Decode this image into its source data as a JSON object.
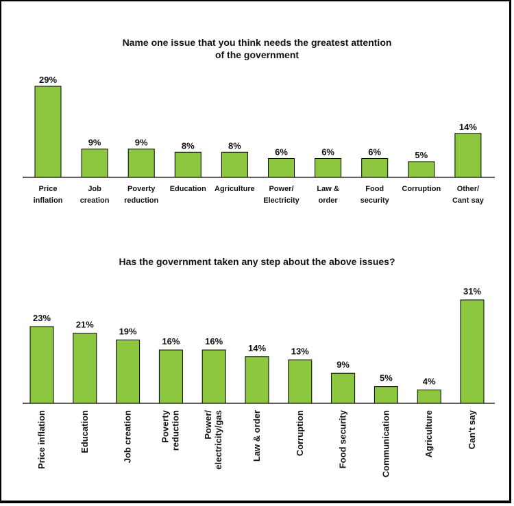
{
  "chart_data": [
    {
      "type": "bar",
      "title": "Name one issue that you think needs the greatest attention of the government",
      "title_lines": [
        "Name one issue that you think needs the greatest attention",
        "of the government"
      ],
      "categories": [
        "Price inflation",
        "Job creation",
        "Poverty reduction",
        "Education",
        "Agriculture",
        "Power/ Electricity",
        "Law & order",
        "Food security",
        "Corruption",
        "Other/ Cant say"
      ],
      "category_lines": [
        [
          "Price",
          "inflation"
        ],
        [
          "Job",
          "creation"
        ],
        [
          "Poverty",
          "reduction"
        ],
        [
          "Education"
        ],
        [
          "Agriculture"
        ],
        [
          "Power/",
          "Electricity"
        ],
        [
          "Law &",
          "order"
        ],
        [
          "Food",
          "security"
        ],
        [
          "Corruption"
        ],
        [
          "Other/",
          "Cant say"
        ]
      ],
      "values": [
        29,
        9,
        9,
        8,
        8,
        6,
        6,
        6,
        5,
        14
      ],
      "value_labels": [
        "29%",
        "9%",
        "9%",
        "8%",
        "8%",
        "6%",
        "6%",
        "6%",
        "5%",
        "14%"
      ],
      "unit": "%",
      "color": "#8dc63f",
      "grid": false,
      "legend": "none"
    },
    {
      "type": "bar",
      "title": "Has the government taken any step about the above issues?",
      "title_lines": [
        "Has the government taken any step about the above issues?"
      ],
      "categories": [
        "Price inflation",
        "Education",
        "Job creation",
        "Poverty reduction",
        "Power/ electricity/gas",
        "Law & order",
        "Corruption",
        "Food security",
        "Communication",
        "Agriculture",
        "Can't say"
      ],
      "category_lines": [
        [
          "Price inflation"
        ],
        [
          "Education"
        ],
        [
          "Job creation"
        ],
        [
          "Poverty",
          "reduction"
        ],
        [
          "Power/",
          "electricity/gas"
        ],
        [
          "Law & order"
        ],
        [
          "Corruption"
        ],
        [
          "Food security"
        ],
        [
          "Communication"
        ],
        [
          "Agriculture"
        ],
        [
          "Can't say"
        ]
      ],
      "values": [
        23,
        21,
        19,
        16,
        16,
        14,
        13,
        9,
        5,
        4,
        31
      ],
      "value_labels": [
        "23%",
        "21%",
        "19%",
        "16%",
        "16%",
        "14%",
        "13%",
        "9%",
        "5%",
        "4%",
        "31%"
      ],
      "unit": "%",
      "color": "#8dc63f",
      "grid": false,
      "legend": "none"
    }
  ]
}
